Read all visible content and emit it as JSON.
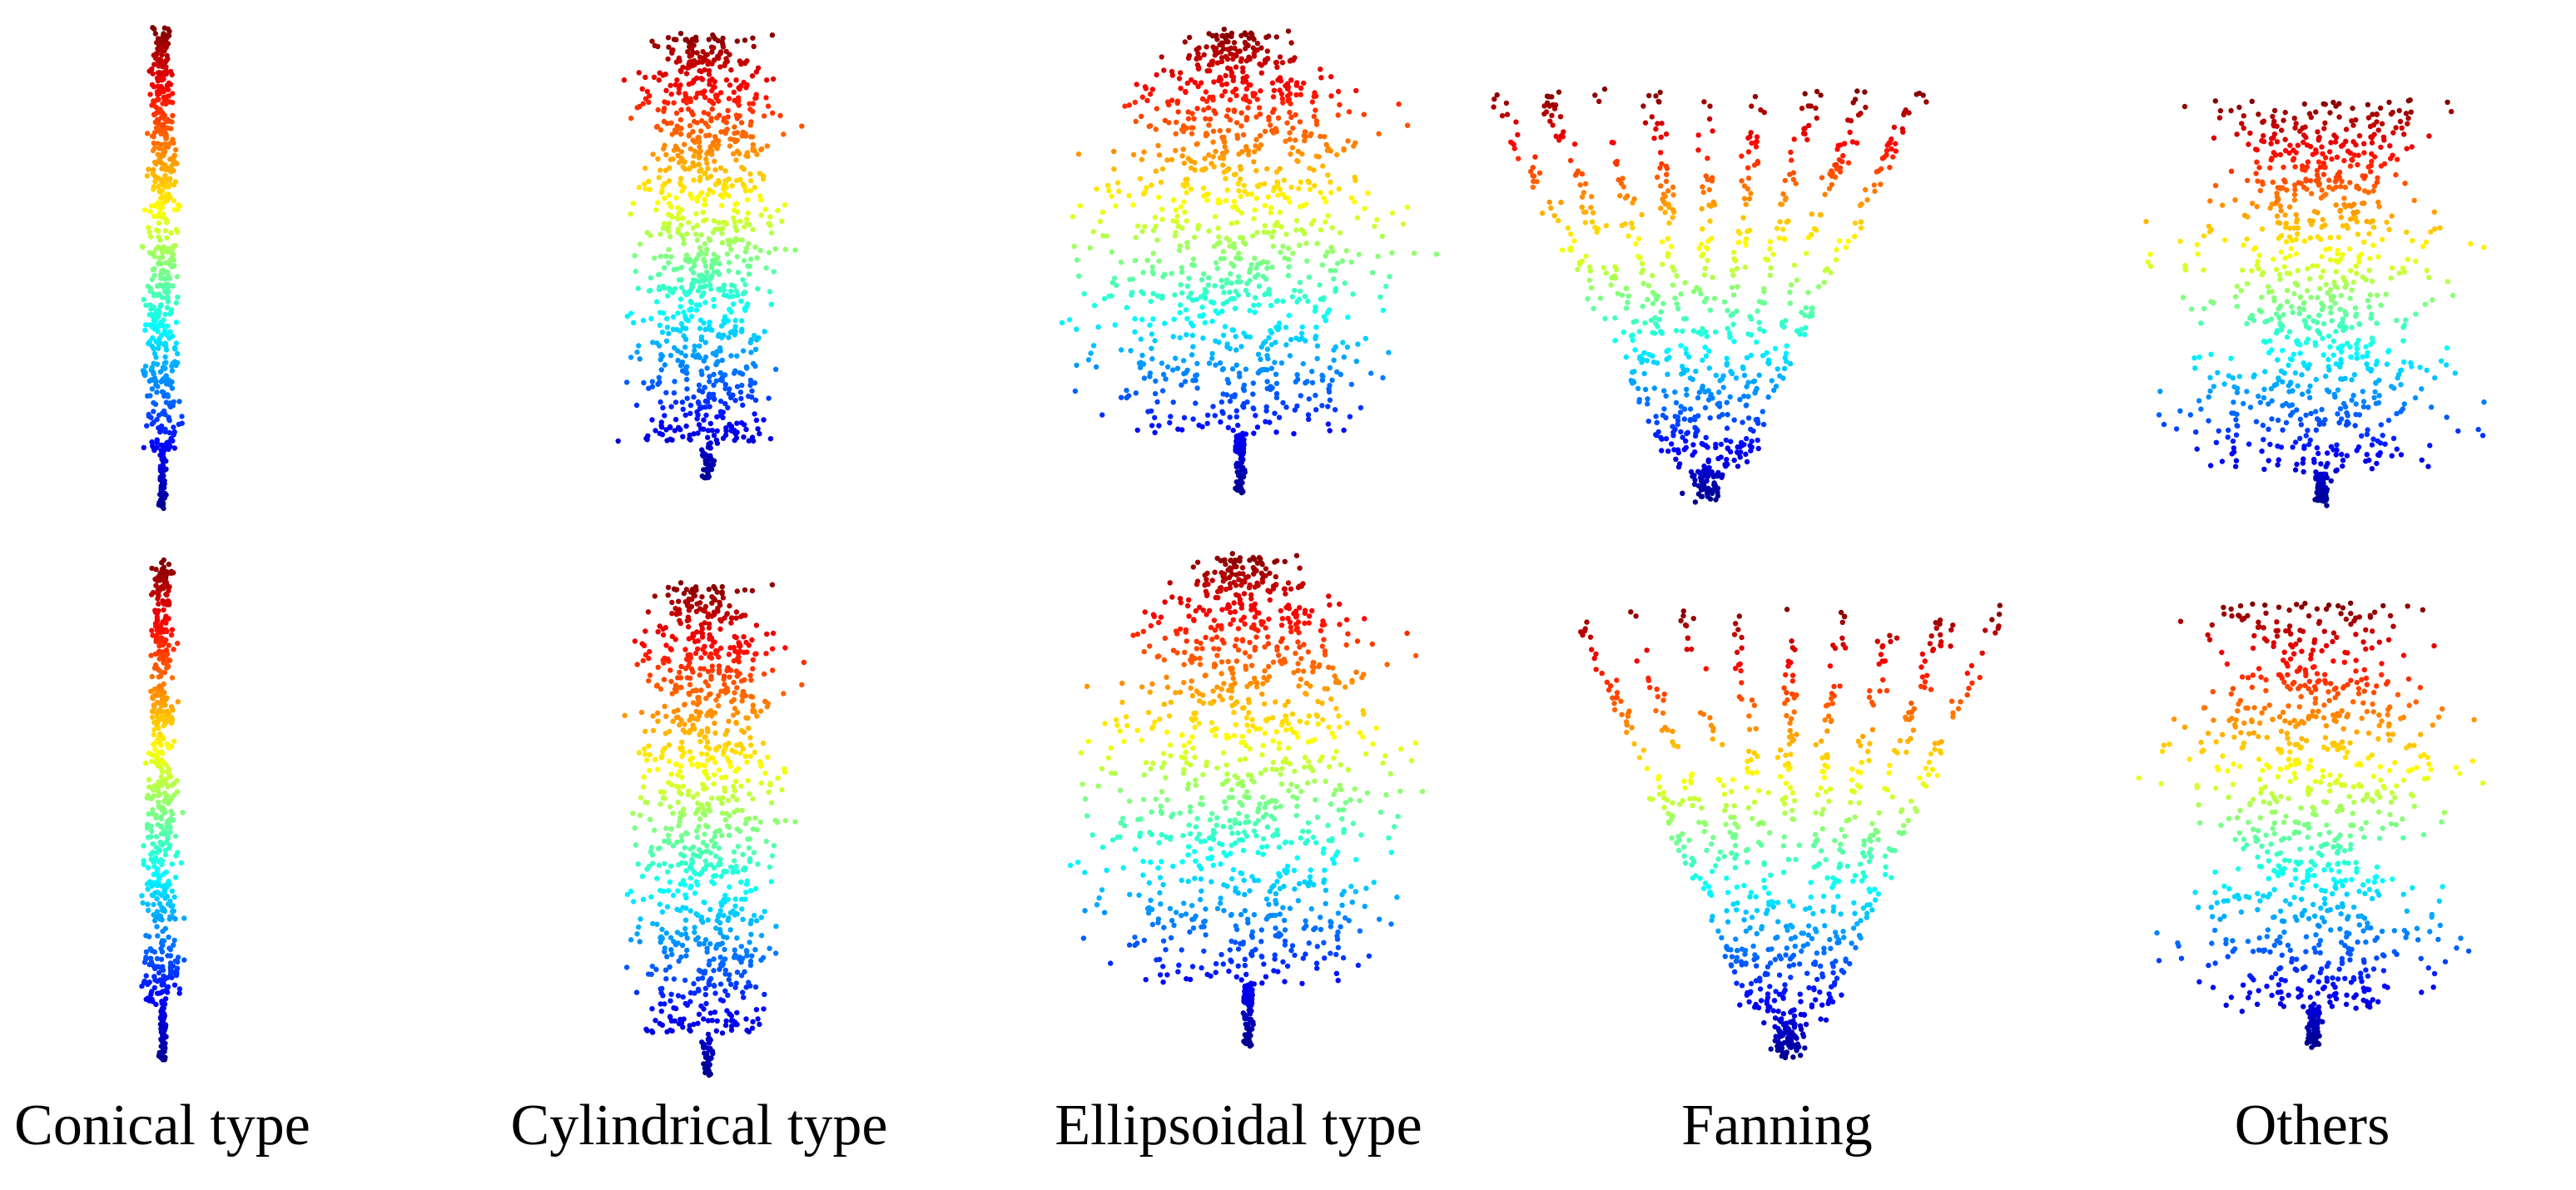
{
  "captions": {
    "conical": "Conical type",
    "cylindrical": "Cylindrical type",
    "ellipsoidal": "Ellipsoidal type",
    "fanning": "Fanning",
    "others": "Others"
  },
  "colormap": [
    "#00008f",
    "#0000ff",
    "#0080ff",
    "#00ffff",
    "#80ff80",
    "#ffff00",
    "#ff8000",
    "#ff0000",
    "#800000"
  ],
  "trees": [
    {
      "row": "top",
      "type": "conical"
    },
    {
      "row": "top",
      "type": "cylindrical"
    },
    {
      "row": "top",
      "type": "ellipsoidal"
    },
    {
      "row": "top",
      "type": "fanning"
    },
    {
      "row": "top",
      "type": "others"
    },
    {
      "row": "bottom",
      "type": "conical"
    },
    {
      "row": "bottom",
      "type": "cylindrical"
    },
    {
      "row": "bottom",
      "type": "ellipsoidal"
    },
    {
      "row": "bottom",
      "type": "fanning"
    },
    {
      "row": "bottom",
      "type": "others"
    }
  ]
}
